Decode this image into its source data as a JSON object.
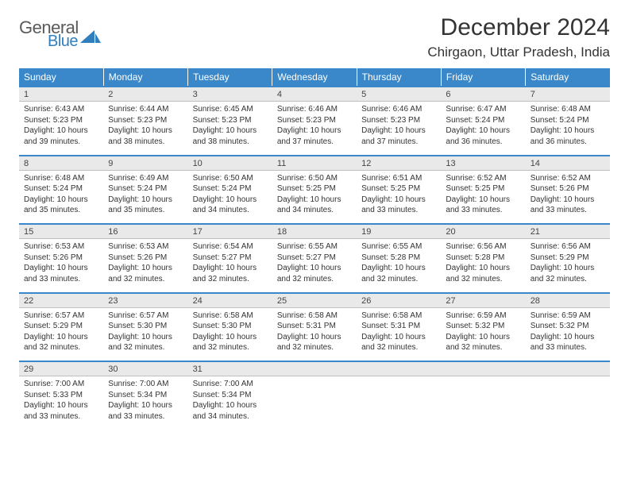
{
  "logo": {
    "word1": "General",
    "word2": "Blue"
  },
  "title": "December 2024",
  "location": "Chirgaon, Uttar Pradesh, India",
  "day_names": [
    "Sunday",
    "Monday",
    "Tuesday",
    "Wednesday",
    "Thursday",
    "Friday",
    "Saturday"
  ],
  "colors": {
    "header_bg": "#3a88c9",
    "header_text": "#ffffff",
    "date_bg": "#e9e9e9",
    "date_border_top": "#3a88c9",
    "text": "#333333",
    "logo_gray": "#5a5a5a",
    "logo_blue": "#2f7fbf"
  },
  "weeks": [
    [
      {
        "n": "1",
        "sunrise": "6:43 AM",
        "sunset": "5:23 PM",
        "day_h": "10",
        "day_m": "39"
      },
      {
        "n": "2",
        "sunrise": "6:44 AM",
        "sunset": "5:23 PM",
        "day_h": "10",
        "day_m": "38"
      },
      {
        "n": "3",
        "sunrise": "6:45 AM",
        "sunset": "5:23 PM",
        "day_h": "10",
        "day_m": "38"
      },
      {
        "n": "4",
        "sunrise": "6:46 AM",
        "sunset": "5:23 PM",
        "day_h": "10",
        "day_m": "37"
      },
      {
        "n": "5",
        "sunrise": "6:46 AM",
        "sunset": "5:23 PM",
        "day_h": "10",
        "day_m": "37"
      },
      {
        "n": "6",
        "sunrise": "6:47 AM",
        "sunset": "5:24 PM",
        "day_h": "10",
        "day_m": "36"
      },
      {
        "n": "7",
        "sunrise": "6:48 AM",
        "sunset": "5:24 PM",
        "day_h": "10",
        "day_m": "36"
      }
    ],
    [
      {
        "n": "8",
        "sunrise": "6:48 AM",
        "sunset": "5:24 PM",
        "day_h": "10",
        "day_m": "35"
      },
      {
        "n": "9",
        "sunrise": "6:49 AM",
        "sunset": "5:24 PM",
        "day_h": "10",
        "day_m": "35"
      },
      {
        "n": "10",
        "sunrise": "6:50 AM",
        "sunset": "5:24 PM",
        "day_h": "10",
        "day_m": "34"
      },
      {
        "n": "11",
        "sunrise": "6:50 AM",
        "sunset": "5:25 PM",
        "day_h": "10",
        "day_m": "34"
      },
      {
        "n": "12",
        "sunrise": "6:51 AM",
        "sunset": "5:25 PM",
        "day_h": "10",
        "day_m": "33"
      },
      {
        "n": "13",
        "sunrise": "6:52 AM",
        "sunset": "5:25 PM",
        "day_h": "10",
        "day_m": "33"
      },
      {
        "n": "14",
        "sunrise": "6:52 AM",
        "sunset": "5:26 PM",
        "day_h": "10",
        "day_m": "33"
      }
    ],
    [
      {
        "n": "15",
        "sunrise": "6:53 AM",
        "sunset": "5:26 PM",
        "day_h": "10",
        "day_m": "33"
      },
      {
        "n": "16",
        "sunrise": "6:53 AM",
        "sunset": "5:26 PM",
        "day_h": "10",
        "day_m": "32"
      },
      {
        "n": "17",
        "sunrise": "6:54 AM",
        "sunset": "5:27 PM",
        "day_h": "10",
        "day_m": "32"
      },
      {
        "n": "18",
        "sunrise": "6:55 AM",
        "sunset": "5:27 PM",
        "day_h": "10",
        "day_m": "32"
      },
      {
        "n": "19",
        "sunrise": "6:55 AM",
        "sunset": "5:28 PM",
        "day_h": "10",
        "day_m": "32"
      },
      {
        "n": "20",
        "sunrise": "6:56 AM",
        "sunset": "5:28 PM",
        "day_h": "10",
        "day_m": "32"
      },
      {
        "n": "21",
        "sunrise": "6:56 AM",
        "sunset": "5:29 PM",
        "day_h": "10",
        "day_m": "32"
      }
    ],
    [
      {
        "n": "22",
        "sunrise": "6:57 AM",
        "sunset": "5:29 PM",
        "day_h": "10",
        "day_m": "32"
      },
      {
        "n": "23",
        "sunrise": "6:57 AM",
        "sunset": "5:30 PM",
        "day_h": "10",
        "day_m": "32"
      },
      {
        "n": "24",
        "sunrise": "6:58 AM",
        "sunset": "5:30 PM",
        "day_h": "10",
        "day_m": "32"
      },
      {
        "n": "25",
        "sunrise": "6:58 AM",
        "sunset": "5:31 PM",
        "day_h": "10",
        "day_m": "32"
      },
      {
        "n": "26",
        "sunrise": "6:58 AM",
        "sunset": "5:31 PM",
        "day_h": "10",
        "day_m": "32"
      },
      {
        "n": "27",
        "sunrise": "6:59 AM",
        "sunset": "5:32 PM",
        "day_h": "10",
        "day_m": "32"
      },
      {
        "n": "28",
        "sunrise": "6:59 AM",
        "sunset": "5:32 PM",
        "day_h": "10",
        "day_m": "33"
      }
    ],
    [
      {
        "n": "29",
        "sunrise": "7:00 AM",
        "sunset": "5:33 PM",
        "day_h": "10",
        "day_m": "33"
      },
      {
        "n": "30",
        "sunrise": "7:00 AM",
        "sunset": "5:34 PM",
        "day_h": "10",
        "day_m": "33"
      },
      {
        "n": "31",
        "sunrise": "7:00 AM",
        "sunset": "5:34 PM",
        "day_h": "10",
        "day_m": "34"
      },
      null,
      null,
      null,
      null
    ]
  ],
  "labels": {
    "sunrise": "Sunrise:",
    "sunset": "Sunset:",
    "daylight_prefix": "Daylight:",
    "hours_word": "hours",
    "and_word": "and",
    "minutes_word": "minutes."
  }
}
